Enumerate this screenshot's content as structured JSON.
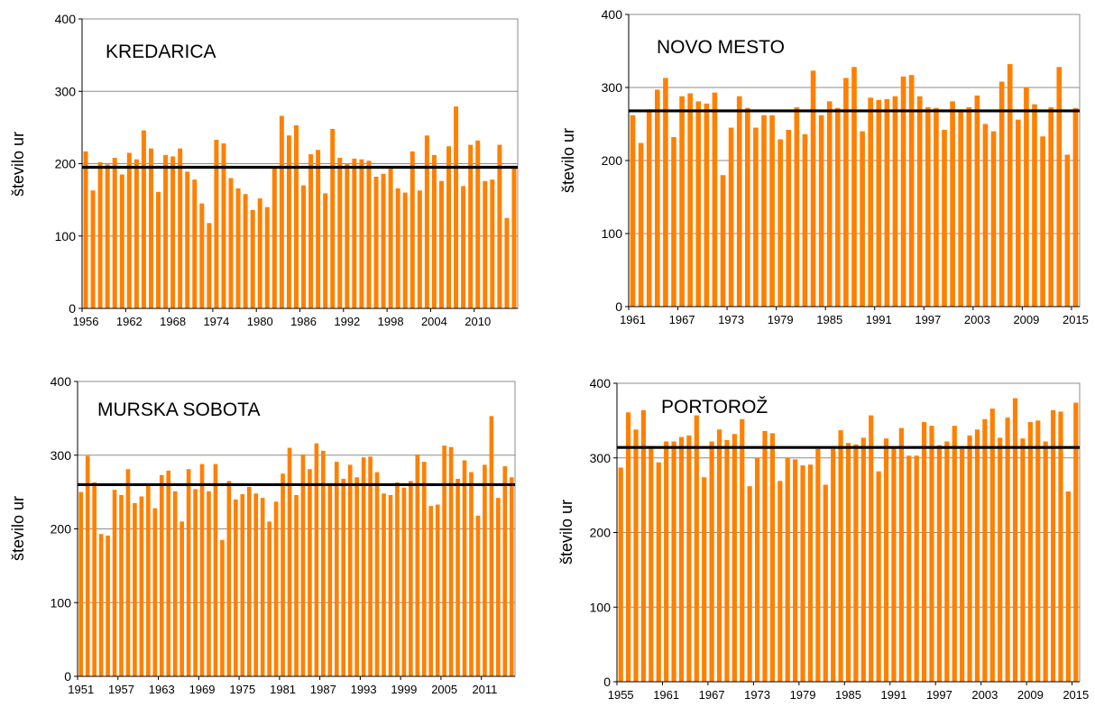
{
  "chart_data": [
    {
      "type": "bar",
      "title": "KREDARICA",
      "ylabel": "število ur",
      "ylim": [
        0,
        400
      ],
      "yticks": [
        0,
        100,
        200,
        300,
        400
      ],
      "grid": true,
      "bar_color": "#ff8000",
      "mean_line_color": "#000000",
      "mean": 195,
      "xtick_labels": [
        "1956",
        "1962",
        "1968",
        "1974",
        "1980",
        "1986",
        "1992",
        "1998",
        "2004",
        "2010"
      ],
      "x": [
        1956,
        1957,
        1958,
        1959,
        1960,
        1961,
        1962,
        1963,
        1964,
        1965,
        1966,
        1967,
        1968,
        1969,
        1970,
        1971,
        1972,
        1973,
        1974,
        1975,
        1976,
        1977,
        1978,
        1979,
        1980,
        1981,
        1982,
        1983,
        1984,
        1985,
        1986,
        1987,
        1988,
        1989,
        1990,
        1991,
        1992,
        1993,
        1994,
        1995,
        1996,
        1997,
        1998,
        1999,
        2000,
        2001,
        2002,
        2003,
        2004,
        2005,
        2006,
        2007,
        2008,
        2009,
        2010,
        2011,
        2012,
        2013,
        2014,
        2015
      ],
      "values": [
        217,
        163,
        202,
        199,
        208,
        185,
        215,
        206,
        246,
        221,
        161,
        212,
        210,
        221,
        189,
        178,
        145,
        118,
        233,
        228,
        180,
        166,
        158,
        136,
        152,
        140,
        195,
        266,
        239,
        253,
        170,
        213,
        219,
        159,
        248,
        208,
        200,
        207,
        206,
        204,
        182,
        186,
        193,
        166,
        160,
        217,
        163,
        239,
        212,
        176,
        224,
        279,
        169,
        226,
        232,
        176,
        178,
        226,
        125,
        197
      ]
    },
    {
      "type": "bar",
      "title": "NOVO MESTO",
      "ylabel": "število ur",
      "ylim": [
        0,
        400
      ],
      "yticks": [
        0,
        100,
        200,
        300,
        400
      ],
      "grid": true,
      "bar_color": "#ff8000",
      "mean_line_color": "#000000",
      "mean": 268,
      "xtick_labels": [
        "1961",
        "1967",
        "1973",
        "1979",
        "1985",
        "1991",
        "1997",
        "2003",
        "2009",
        "2015"
      ],
      "x": [
        1961,
        1962,
        1963,
        1964,
        1965,
        1966,
        1967,
        1968,
        1969,
        1970,
        1971,
        1972,
        1973,
        1974,
        1975,
        1976,
        1977,
        1978,
        1979,
        1980,
        1981,
        1982,
        1983,
        1984,
        1985,
        1986,
        1987,
        1988,
        1989,
        1990,
        1991,
        1992,
        1993,
        1994,
        1995,
        1996,
        1997,
        1998,
        1999,
        2000,
        2001,
        2002,
        2003,
        2004,
        2005,
        2006,
        2007,
        2008,
        2009,
        2010,
        2011,
        2012,
        2013,
        2014,
        2015
      ],
      "values": [
        262,
        224,
        270,
        297,
        313,
        232,
        288,
        292,
        281,
        278,
        293,
        180,
        245,
        288,
        272,
        245,
        262,
        262,
        229,
        242,
        273,
        236,
        323,
        262,
        281,
        272,
        313,
        328,
        240,
        286,
        283,
        284,
        288,
        315,
        317,
        288,
        273,
        272,
        242,
        281,
        270,
        273,
        289,
        250,
        240,
        308,
        332,
        256,
        300,
        277,
        233,
        273,
        328,
        208,
        272
      ]
    },
    {
      "type": "bar",
      "title": "MURSKA SOBOTA",
      "ylabel": "število ur",
      "ylim": [
        0,
        400
      ],
      "yticks": [
        0,
        100,
        200,
        300,
        400
      ],
      "grid": true,
      "bar_color": "#ff8000",
      "mean_line_color": "#000000",
      "mean": 260,
      "xtick_labels": [
        "1951",
        "1957",
        "1963",
        "1969",
        "1975",
        "1981",
        "1987",
        "1993",
        "1999",
        "2005",
        "2011"
      ],
      "x": [
        1951,
        1952,
        1953,
        1954,
        1955,
        1956,
        1957,
        1958,
        1959,
        1960,
        1961,
        1962,
        1963,
        1964,
        1965,
        1966,
        1967,
        1968,
        1969,
        1970,
        1971,
        1972,
        1973,
        1974,
        1975,
        1976,
        1977,
        1978,
        1979,
        1980,
        1981,
        1982,
        1983,
        1984,
        1985,
        1986,
        1987,
        1988,
        1989,
        1990,
        1991,
        1992,
        1993,
        1994,
        1995,
        1996,
        1997,
        1998,
        1999,
        2000,
        2001,
        2002,
        2003,
        2004,
        2005,
        2006,
        2007,
        2008,
        2009,
        2010,
        2011,
        2012,
        2013,
        2014,
        2015
      ],
      "values": [
        250,
        299,
        263,
        193,
        191,
        253,
        246,
        281,
        235,
        244,
        260,
        228,
        273,
        279,
        251,
        210,
        281,
        254,
        288,
        251,
        288,
        185,
        265,
        240,
        247,
        257,
        248,
        242,
        210,
        237,
        275,
        310,
        246,
        301,
        281,
        316,
        306,
        262,
        291,
        268,
        287,
        270,
        297,
        298,
        277,
        248,
        246,
        263,
        256,
        265,
        301,
        291,
        231,
        233,
        313,
        311,
        268,
        293,
        277,
        218,
        287,
        353,
        242,
        285,
        270
      ]
    },
    {
      "type": "bar",
      "title": "PORTOROŽ",
      "ylabel": "število ur",
      "ylim": [
        0,
        400
      ],
      "yticks": [
        0,
        100,
        200,
        300,
        400
      ],
      "grid": true,
      "bar_color": "#ff8000",
      "mean_line_color": "#000000",
      "mean": 314,
      "xtick_labels": [
        "1955",
        "1961",
        "1967",
        "1973",
        "1979",
        "1985",
        "1991",
        "1997",
        "2003",
        "2009",
        "2015"
      ],
      "x": [
        1955,
        1956,
        1957,
        1958,
        1959,
        1960,
        1961,
        1962,
        1963,
        1964,
        1965,
        1966,
        1967,
        1968,
        1969,
        1970,
        1971,
        1972,
        1973,
        1974,
        1975,
        1976,
        1977,
        1978,
        1979,
        1980,
        1981,
        1982,
        1983,
        1984,
        1985,
        1986,
        1987,
        1988,
        1989,
        1990,
        1991,
        1992,
        1993,
        1994,
        1995,
        1996,
        1997,
        1998,
        1999,
        2000,
        2001,
        2002,
        2003,
        2004,
        2005,
        2006,
        2007,
        2008,
        2009,
        2010,
        2011,
        2012,
        2013,
        2014,
        2015
      ],
      "values": [
        287,
        361,
        338,
        364,
        316,
        294,
        322,
        322,
        328,
        330,
        357,
        274,
        322,
        338,
        324,
        332,
        352,
        262,
        300,
        336,
        333,
        269,
        300,
        298,
        290,
        291,
        312,
        264,
        312,
        337,
        320,
        318,
        327,
        357,
        282,
        326,
        313,
        340,
        303,
        303,
        348,
        343,
        317,
        322,
        343,
        312,
        330,
        338,
        352,
        366,
        327,
        354,
        380,
        326,
        348,
        350,
        322,
        364,
        362,
        255,
        374
      ]
    }
  ]
}
